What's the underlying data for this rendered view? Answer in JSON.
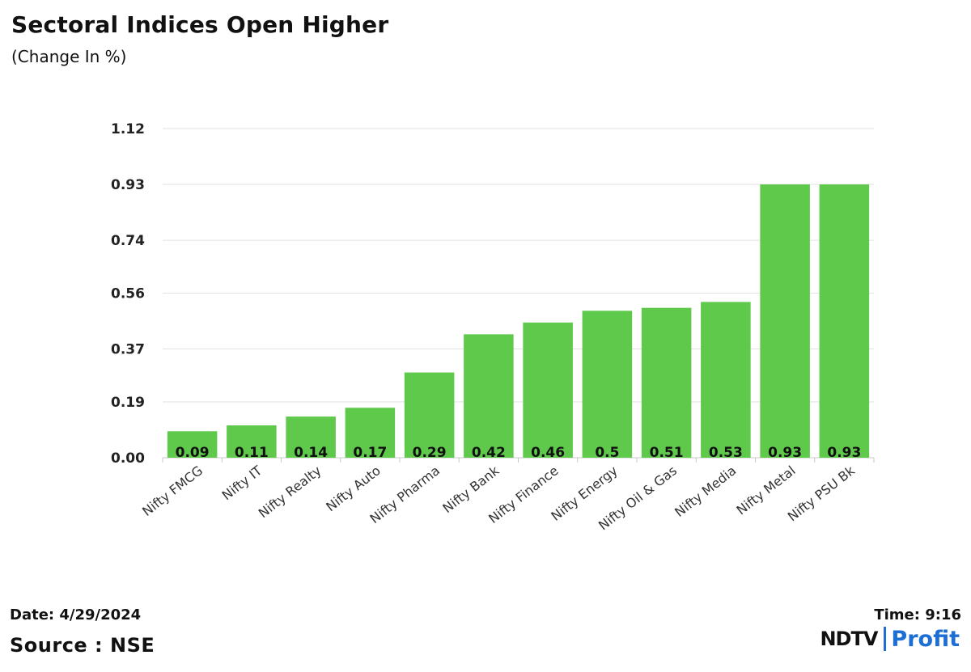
{
  "header": {
    "title": "Sectoral Indices Open Higher",
    "subtitle": "(Change In %)"
  },
  "footer": {
    "date": "Date: 4/29/2024",
    "source": "Source : NSE",
    "time": "Time: 9:16"
  },
  "logo": {
    "ndtv": "NDTV",
    "profit": "Profit",
    "accent_color": "#1d6fd6"
  },
  "chart_data": {
    "type": "bar",
    "title": "Sectoral Indices Open Higher",
    "subtitle": "(Change In %)",
    "categories": [
      "Nifty FMCG",
      "Nifty IT",
      "Nifty Realty",
      "Nifty Auto",
      "Nifty Pharma",
      "Nifty Bank",
      "Nifty Finance",
      "Nifty Energy",
      "Nifty Oil & Gas",
      "Nifty Media",
      "Nifty Metal",
      "Nifty PSU Bk"
    ],
    "values": [
      0.09,
      0.11,
      0.14,
      0.17,
      0.29,
      0.42,
      0.46,
      0.5,
      0.51,
      0.53,
      0.93,
      0.93
    ],
    "data_labels": [
      "0.09",
      "0.11",
      "0.14",
      "0.17",
      "0.29",
      "0.42",
      "0.46",
      "0.5",
      "0.51",
      "0.53",
      "0.93",
      "0.93"
    ],
    "yticks": [
      "0.00",
      "0.19",
      "0.37",
      "0.56",
      "0.74",
      "0.93",
      "1.12"
    ],
    "ylim": [
      0,
      1.12
    ],
    "xlabel": "",
    "ylabel": "",
    "grid": true,
    "legend": "none",
    "bar_color": "#5ec94b"
  }
}
